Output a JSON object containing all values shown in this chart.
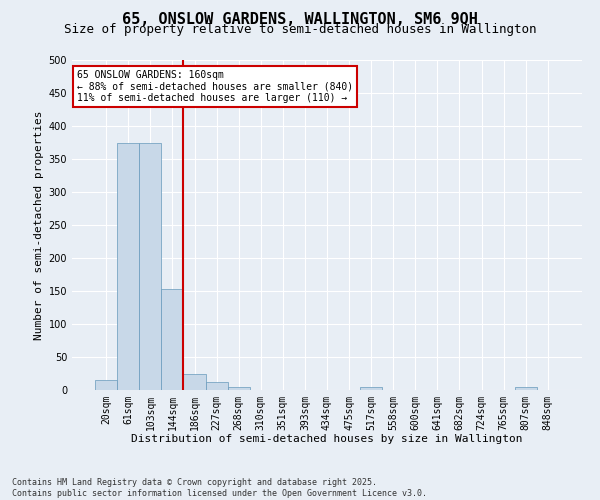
{
  "title": "65, ONSLOW GARDENS, WALLINGTON, SM6 9QH",
  "subtitle": "Size of property relative to semi-detached houses in Wallington",
  "xlabel": "Distribution of semi-detached houses by size in Wallington",
  "ylabel": "Number of semi-detached properties",
  "footnote": "Contains HM Land Registry data © Crown copyright and database right 2025.\nContains public sector information licensed under the Open Government Licence v3.0.",
  "bin_labels": [
    "20sqm",
    "61sqm",
    "103sqm",
    "144sqm",
    "186sqm",
    "227sqm",
    "268sqm",
    "310sqm",
    "351sqm",
    "393sqm",
    "434sqm",
    "475sqm",
    "517sqm",
    "558sqm",
    "600sqm",
    "641sqm",
    "682sqm",
    "724sqm",
    "765sqm",
    "807sqm",
    "848sqm"
  ],
  "bar_values": [
    15,
    375,
    375,
    153,
    25,
    12,
    4,
    0,
    0,
    0,
    0,
    0,
    5,
    0,
    0,
    0,
    0,
    0,
    0,
    5,
    0
  ],
  "bar_color": "#c8d8e8",
  "bar_edge_color": "#6699bb",
  "vline_x_index": 3.5,
  "vline_color": "#cc0000",
  "annotation_text": "65 ONSLOW GARDENS: 160sqm\n← 88% of semi-detached houses are smaller (840)\n11% of semi-detached houses are larger (110) →",
  "annotation_box_color": "#ffffff",
  "annotation_box_edge_color": "#cc0000",
  "ylim": [
    0,
    500
  ],
  "yticks": [
    0,
    50,
    100,
    150,
    200,
    250,
    300,
    350,
    400,
    450,
    500
  ],
  "background_color": "#e8eef5",
  "plot_bg_color": "#e8eef5",
  "title_fontsize": 11,
  "subtitle_fontsize": 9,
  "axis_label_fontsize": 8,
  "tick_fontsize": 7,
  "annotation_fontsize": 7,
  "footnote_fontsize": 6
}
